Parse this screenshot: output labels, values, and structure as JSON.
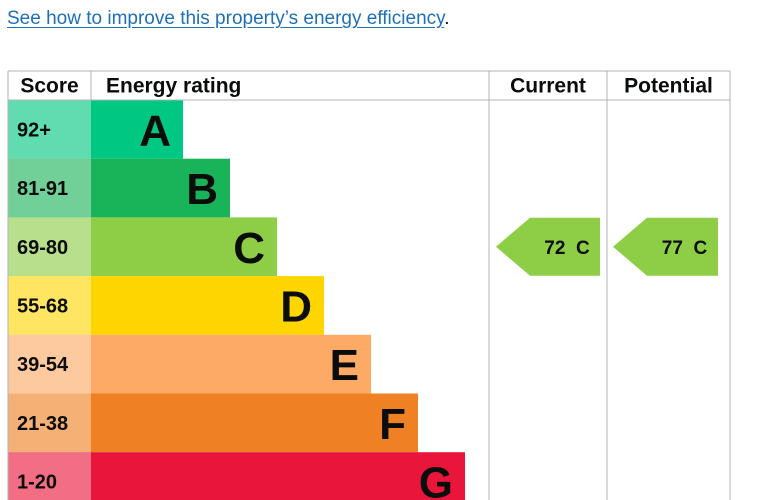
{
  "intro": {
    "link_text": "See how to improve this property’s energy efficiency",
    "suffix": "."
  },
  "colors": {
    "link": "#1d70b8",
    "grid": "#b1b4b6",
    "band_A": "#00c781",
    "band_B": "#19b459",
    "band_C": "#8dce46",
    "band_D": "#ffd500",
    "band_E": "#fcaa65",
    "band_F": "#ef8023",
    "band_G": "#e9153b"
  },
  "chart_data": {
    "type": "table",
    "headers": {
      "score": "Score",
      "rating": "Energy rating",
      "current": "Current",
      "potential": "Potential"
    },
    "bands": [
      {
        "letter": "A",
        "score": "92+"
      },
      {
        "letter": "B",
        "score": "81-91"
      },
      {
        "letter": "C",
        "score": "69-80"
      },
      {
        "letter": "D",
        "score": "55-68"
      },
      {
        "letter": "E",
        "score": "39-54"
      },
      {
        "letter": "F",
        "score": "21-38"
      },
      {
        "letter": "G",
        "score": "1-20"
      }
    ],
    "current": {
      "value": 72,
      "band": "C",
      "label": "72  C"
    },
    "potential": {
      "value": 77,
      "band": "C",
      "label": "77  C"
    }
  }
}
